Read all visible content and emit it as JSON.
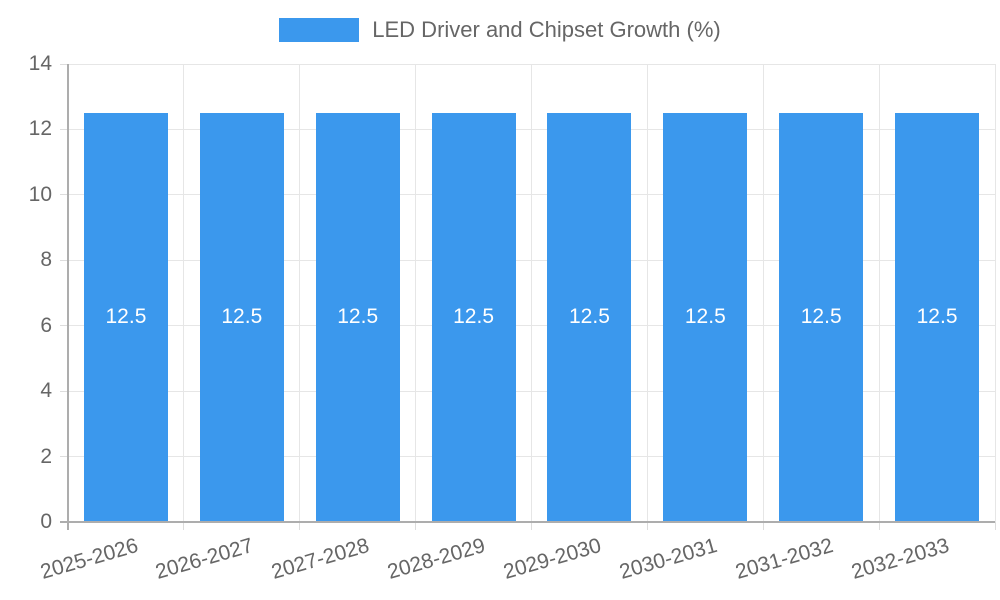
{
  "legend": {
    "label": "LED Driver and Chipset Growth (%)",
    "swatch_color": "#3B98ED",
    "text_color": "#666666",
    "position": "top-center"
  },
  "chart_data": {
    "type": "bar",
    "title": "",
    "xlabel": "",
    "ylabel": "",
    "categories": [
      "2025-2026",
      "2026-2027",
      "2027-2028",
      "2028-2029",
      "2029-2030",
      "2030-2031",
      "2031-2032",
      "2032-2033"
    ],
    "series": [
      {
        "name": "LED Driver and Chipset Growth (%)",
        "values": [
          12.5,
          12.5,
          12.5,
          12.5,
          12.5,
          12.5,
          12.5,
          12.5
        ],
        "value_labels": [
          "12.5",
          "12.5",
          "12.5",
          "12.5",
          "12.5",
          "12.5",
          "12.5",
          "12.5"
        ]
      }
    ],
    "ylim": [
      0,
      14
    ],
    "ytick_step": 2,
    "yticks": [
      0,
      2,
      4,
      6,
      8,
      10,
      12,
      14
    ],
    "grid": true,
    "legend_position": "top",
    "value_label_position": "center-of-bar",
    "xtick_rotation_deg": -16,
    "colors": {
      "bar": "#3B98ED",
      "value_label": "#FFFFFF",
      "tick_label": "#666666",
      "gridline": "#E6E6E6",
      "tick_mark": "#DDDDDD",
      "axis_line": "#ADADAD",
      "background": "#FFFFFF"
    }
  }
}
